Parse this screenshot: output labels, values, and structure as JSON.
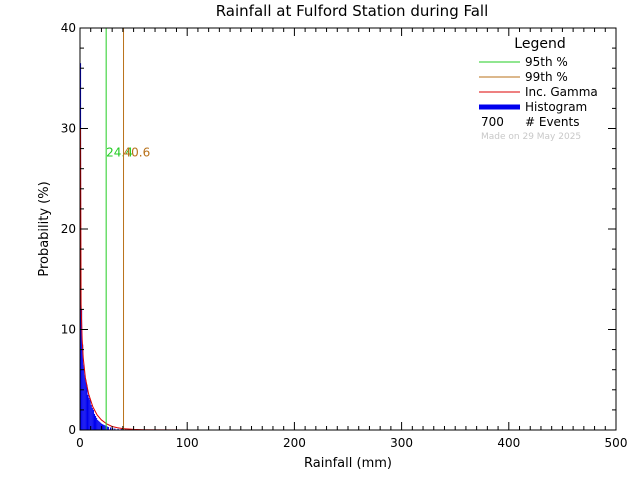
{
  "chart_data": {
    "type": "bar",
    "title": "Rainfall at Fulford Station during Fall",
    "xlabel": "Rainfall (mm)",
    "ylabel": "Probability (%)",
    "xlim": [
      0,
      500
    ],
    "ylim": [
      0,
      40
    ],
    "x_ticks": [
      "0",
      "100",
      "200",
      "300",
      "400",
      "500"
    ],
    "y_ticks": [
      "0",
      "10",
      "20",
      "30",
      "40"
    ],
    "grid": false,
    "legend_position": "top-right",
    "legend": {
      "title": "Legend",
      "entries": [
        {
          "label": "95th %",
          "color": "#22cc22",
          "kind": "line"
        },
        {
          "label": "99th %",
          "color": "#b8711a",
          "kind": "line"
        },
        {
          "label": "Inc. Gamma",
          "color": "#dd0000",
          "kind": "line"
        },
        {
          "label": "Histogram",
          "color": "#0000ee",
          "kind": "bar"
        }
      ],
      "events_count": "700",
      "events_label": "# Events"
    },
    "percentiles": [
      {
        "name": "95th %",
        "value": 24.4,
        "label": "24.4",
        "color": "#22cc22"
      },
      {
        "name": "99th %",
        "value": 40.6,
        "label": "40.6",
        "color": "#b8711a"
      }
    ],
    "histogram": {
      "bin_width": 1,
      "x": [
        0,
        1,
        2,
        3,
        4,
        5,
        6,
        7,
        8,
        9,
        10,
        11,
        12,
        13,
        14,
        15,
        16,
        17,
        18,
        19,
        20,
        21,
        22,
        23,
        24,
        25,
        26,
        28,
        30,
        32,
        35,
        38,
        42
      ],
      "values": [
        36.5,
        12.0,
        8.5,
        6.5,
        5.5,
        5.0,
        4.5,
        3.5,
        3.2,
        3.0,
        2.5,
        2.2,
        2.0,
        1.6,
        1.4,
        1.2,
        1.0,
        0.9,
        0.8,
        0.7,
        0.6,
        0.55,
        0.5,
        0.45,
        0.4,
        0.35,
        0.3,
        0.25,
        0.2,
        0.15,
        0.12,
        0.1,
        0.08
      ]
    },
    "gamma_curve": {
      "x": [
        0.5,
        1,
        2,
        3,
        5,
        8,
        12,
        16,
        20,
        25,
        30,
        35,
        40,
        50,
        60,
        80,
        100,
        150,
        200,
        300,
        400,
        500
      ],
      "values": [
        30.0,
        12.5,
        9.0,
        7.2,
        5.2,
        3.6,
        2.3,
        1.5,
        1.0,
        0.6,
        0.35,
        0.22,
        0.14,
        0.06,
        0.03,
        0.01,
        0.0,
        0.0,
        0.0,
        0.0,
        0.0,
        0.0
      ],
      "color": "#dd0000"
    },
    "credit": "Made on 29 May 2025"
  }
}
